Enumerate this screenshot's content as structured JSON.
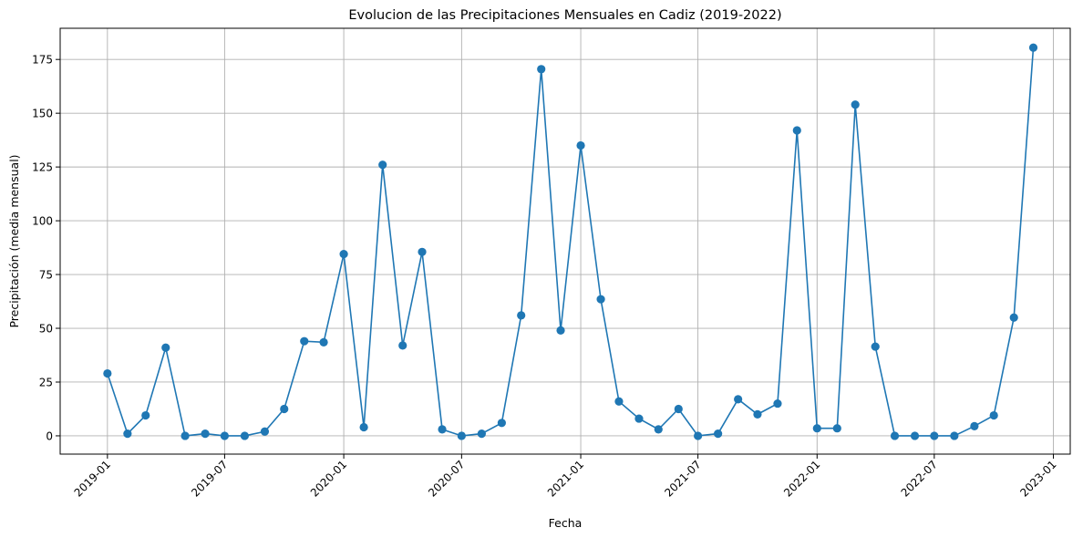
{
  "chart_data": {
    "type": "line",
    "title": "Evolucion de las Precipitaciones Mensuales en Cadiz (2019-2022)",
    "xlabel": "Fecha",
    "ylabel": "Precipitación (media mensual)",
    "x": [
      "2019-01",
      "2019-02",
      "2019-03",
      "2019-04",
      "2019-05",
      "2019-06",
      "2019-07",
      "2019-08",
      "2019-09",
      "2019-10",
      "2019-11",
      "2019-12",
      "2020-01",
      "2020-02",
      "2020-03",
      "2020-04",
      "2020-05",
      "2020-06",
      "2020-07",
      "2020-08",
      "2020-09",
      "2020-10",
      "2020-11",
      "2020-12",
      "2021-01",
      "2021-02",
      "2021-03",
      "2021-04",
      "2021-05",
      "2021-06",
      "2021-07",
      "2021-08",
      "2021-09",
      "2021-10",
      "2021-11",
      "2021-12",
      "2022-01",
      "2022-02",
      "2022-03",
      "2022-04",
      "2022-05",
      "2022-06",
      "2022-07",
      "2022-08",
      "2022-09",
      "2022-10",
      "2022-11",
      "2022-12"
    ],
    "series": [
      {
        "values": [
          29,
          1,
          9.5,
          41,
          0,
          1,
          0,
          0,
          2,
          12.5,
          44,
          43.5,
          84.5,
          4,
          126,
          42,
          85.5,
          3,
          0,
          1,
          6,
          56,
          170.5,
          49,
          135,
          63.5,
          16,
          8,
          3,
          12.5,
          0,
          1,
          17,
          10,
          15,
          142,
          3.5,
          3.5,
          154,
          41.5,
          0,
          0,
          0,
          0,
          4.5,
          9.5,
          55,
          180.5
        ],
        "color": "#1f77b4"
      }
    ],
    "xticks": [
      "2019-01",
      "2019-07",
      "2020-01",
      "2020-07",
      "2021-01",
      "2021-07",
      "2022-01",
      "2022-07",
      "2023-01"
    ],
    "yticks": [
      0,
      25,
      50,
      75,
      100,
      125,
      150,
      175
    ],
    "ylim": [
      -8.5,
      189.5
    ],
    "xlim": [
      "2018-10-20",
      "2023-01-27"
    ],
    "grid": true,
    "legend": "none"
  }
}
